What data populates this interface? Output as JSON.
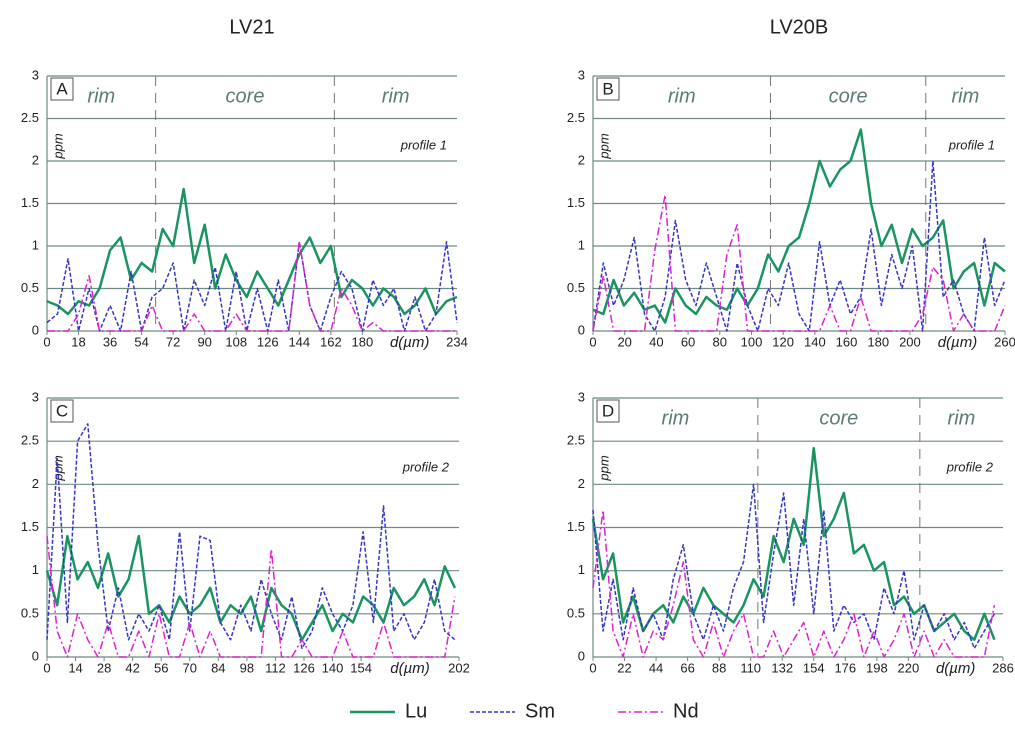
{
  "chart_data": [
    {
      "type": "line",
      "title": "LV21",
      "panel_label": "A",
      "annotation": "profile 1",
      "ylabel": "ppm",
      "xlabel": "d(µm)",
      "zones": [
        "rim",
        "core",
        "rim"
      ],
      "zone_boundaries": [
        62,
        164
      ],
      "xlim": [
        0,
        234
      ],
      "xticks": [
        0,
        18,
        36,
        54,
        72,
        90,
        108,
        126,
        144,
        162,
        180,
        234
      ],
      "ylim": [
        0,
        3
      ],
      "yticks": [
        0,
        0.5,
        1,
        1.5,
        2,
        2.5,
        3
      ],
      "grid": true,
      "x": [
        0,
        6,
        12,
        18,
        24,
        30,
        36,
        42,
        48,
        54,
        60,
        66,
        72,
        78,
        84,
        90,
        96,
        102,
        108,
        114,
        120,
        126,
        132,
        138,
        144,
        150,
        156,
        162,
        168,
        174,
        180,
        186,
        192,
        198,
        204,
        210,
        216,
        222,
        228,
        234
      ],
      "series": [
        {
          "name": "Lu",
          "color": "#1a9460",
          "line_style": "solid",
          "values": [
            0.35,
            0.3,
            0.2,
            0.35,
            0.3,
            0.5,
            0.95,
            1.1,
            0.6,
            0.8,
            0.7,
            1.2,
            1.0,
            1.67,
            0.8,
            1.25,
            0.5,
            0.9,
            0.6,
            0.4,
            0.7,
            0.5,
            0.3,
            0.6,
            0.9,
            1.1,
            0.8,
            1.0,
            0.4,
            0.6,
            0.5,
            0.3,
            0.5,
            0.4,
            0.2,
            0.3,
            0.5,
            0.2,
            0.35,
            0.4
          ]
        },
        {
          "name": "Sm",
          "color": "#3535c8",
          "line_style": "dashed",
          "values": [
            0.1,
            0.2,
            0.85,
            0,
            0.5,
            0,
            0.3,
            0,
            0.7,
            0,
            0.4,
            0.5,
            0.8,
            0,
            0.6,
            0.3,
            0.75,
            0,
            0.7,
            0,
            0.5,
            0,
            0.6,
            0,
            1.05,
            0.3,
            0,
            0.4,
            0.7,
            0.5,
            0,
            0.6,
            0.3,
            0.5,
            0,
            0.4,
            0,
            0.2,
            1.05,
            0.1
          ]
        },
        {
          "name": "Nd",
          "color": "#e020d0",
          "line_style": "dashdot",
          "values": [
            0,
            0,
            0,
            0.2,
            0.65,
            0,
            0,
            0,
            0,
            0,
            0.3,
            0,
            0,
            0,
            0.2,
            0,
            0,
            0,
            0.2,
            0,
            0,
            0,
            0,
            0,
            1.05,
            0.3,
            0,
            0,
            0.5,
            0.3,
            0,
            0.1,
            0,
            0,
            0,
            0,
            0,
            0,
            0,
            0
          ]
        }
      ]
    },
    {
      "type": "line",
      "title": "LV20B",
      "panel_label": "B",
      "annotation": "profile 1",
      "ylabel": "ppm",
      "xlabel": "d(µm)",
      "zones": [
        "rim",
        "core",
        "rim"
      ],
      "zone_boundaries": [
        112,
        210
      ],
      "xlim": [
        0,
        260
      ],
      "xticks": [
        0,
        20,
        40,
        60,
        80,
        100,
        120,
        140,
        160,
        180,
        200,
        260
      ],
      "ylim": [
        0,
        3
      ],
      "yticks": [
        0,
        0.5,
        1,
        1.5,
        2,
        2.5,
        3
      ],
      "grid": true,
      "x": [
        0,
        6.5,
        13,
        19.5,
        26,
        32.5,
        39,
        45.5,
        52,
        58.5,
        65,
        71.5,
        78,
        84.5,
        91,
        97.5,
        104,
        110.5,
        117,
        123.5,
        130,
        136.5,
        143,
        149.5,
        156,
        162.5,
        169,
        175.5,
        182,
        188.5,
        195,
        201.5,
        208,
        214.5,
        221,
        227.5,
        234,
        240.5,
        247,
        253.5,
        260
      ],
      "series": [
        {
          "name": "Lu",
          "color": "#1a9460",
          "line_style": "solid",
          "values": [
            0.25,
            0.2,
            0.6,
            0.3,
            0.45,
            0.25,
            0.3,
            0.1,
            0.5,
            0.3,
            0.2,
            0.4,
            0.3,
            0.25,
            0.5,
            0.3,
            0.5,
            0.9,
            0.7,
            1.0,
            1.1,
            1.5,
            2.0,
            1.7,
            1.9,
            2.0,
            2.37,
            1.5,
            1.0,
            1.25,
            0.8,
            1.2,
            1.0,
            1.1,
            1.3,
            0.5,
            0.7,
            0.8,
            0.3,
            0.8,
            0.7
          ]
        },
        {
          "name": "Sm",
          "color": "#3535c8",
          "line_style": "dashed",
          "values": [
            0,
            0.8,
            0.3,
            0.6,
            1.1,
            0.2,
            0,
            0.4,
            1.3,
            0.6,
            0.3,
            0.8,
            0.4,
            0,
            0.8,
            0.3,
            0,
            0.5,
            0.3,
            0.8,
            0.2,
            0,
            1.05,
            0.3,
            0.6,
            0.2,
            0.4,
            1.2,
            0.3,
            0.9,
            0.5,
            1.0,
            0,
            2.0,
            0.4,
            0.6,
            0.2,
            0,
            1.1,
            0.3,
            0.6
          ]
        },
        {
          "name": "Nd",
          "color": "#e020d0",
          "line_style": "dashdot",
          "values": [
            0,
            0.65,
            0,
            0,
            0,
            0,
            0.95,
            1.6,
            0,
            0,
            0,
            0,
            0,
            0.9,
            1.25,
            0,
            0,
            0,
            0,
            0,
            0,
            0,
            0,
            0.3,
            0,
            0,
            0.4,
            0,
            0,
            0,
            0,
            0,
            0.2,
            0.75,
            0.6,
            0,
            0.2,
            0,
            0,
            0,
            0.3
          ]
        }
      ]
    },
    {
      "type": "line",
      "panel_label": "C",
      "annotation": "profile 2",
      "ylabel": "ppm",
      "xlabel": "d(µm)",
      "xlim": [
        0,
        202
      ],
      "xticks": [
        0,
        14,
        28,
        42,
        56,
        70,
        84,
        98,
        112,
        126,
        140,
        154,
        202
      ],
      "ylim": [
        0,
        3
      ],
      "yticks": [
        0,
        0.5,
        1,
        1.5,
        2,
        2.5,
        3
      ],
      "grid": true,
      "x": [
        0,
        5,
        10,
        15,
        20,
        25,
        30,
        35,
        40,
        45,
        50,
        55,
        60,
        65,
        70,
        75,
        80,
        85,
        90,
        95,
        100,
        105,
        110,
        115,
        120,
        125,
        130,
        135,
        140,
        145,
        150,
        155,
        160,
        165,
        170,
        175,
        180,
        185,
        190,
        195,
        200
      ],
      "series": [
        {
          "name": "Lu",
          "color": "#1a9460",
          "line_style": "solid",
          "values": [
            1.0,
            0.6,
            1.4,
            0.9,
            1.1,
            0.8,
            1.2,
            0.7,
            0.9,
            1.4,
            0.5,
            0.6,
            0.4,
            0.7,
            0.5,
            0.6,
            0.8,
            0.4,
            0.6,
            0.5,
            0.7,
            0.3,
            0.8,
            0.6,
            0.5,
            0.2,
            0.4,
            0.6,
            0.3,
            0.5,
            0.4,
            0.7,
            0.6,
            0.4,
            0.8,
            0.6,
            0.7,
            0.9,
            0.6,
            1.05,
            0.8
          ]
        },
        {
          "name": "Sm",
          "color": "#3535c8",
          "line_style": "dashed",
          "values": [
            0.2,
            2.3,
            0.4,
            2.5,
            2.7,
            1.3,
            0.3,
            0.8,
            0.2,
            0.5,
            0.3,
            0.6,
            0.2,
            1.45,
            0.3,
            1.4,
            1.35,
            0.4,
            0.2,
            0.6,
            0.3,
            0.9,
            0.5,
            0.2,
            0.7,
            0.1,
            0.3,
            0.8,
            0.5,
            0.3,
            0.6,
            1.45,
            0.4,
            1.75,
            0.3,
            0.5,
            0.2,
            0.4,
            0.9,
            0.3,
            0.2
          ]
        },
        {
          "name": "Nd",
          "color": "#e020d0",
          "line_style": "dashdot",
          "values": [
            1.4,
            0.3,
            0,
            0.5,
            0.2,
            0,
            0.4,
            0,
            0,
            0.3,
            0,
            0.5,
            0,
            0,
            0.4,
            0,
            0.3,
            0,
            0,
            0,
            0,
            0,
            1.25,
            0,
            0,
            0.2,
            0,
            0,
            0,
            0.3,
            0,
            0,
            0,
            0.4,
            0,
            0,
            0,
            0,
            0,
            0,
            0.7
          ]
        }
      ]
    },
    {
      "type": "line",
      "panel_label": "D",
      "annotation": "profile 2",
      "ylabel": "ppm",
      "xlabel": "d(µm)",
      "zones": [
        "rim",
        "core",
        "rim"
      ],
      "zone_boundaries": [
        115,
        228
      ],
      "xlim": [
        0,
        286
      ],
      "xticks": [
        0,
        22,
        44,
        66,
        88,
        110,
        132,
        154,
        176,
        198,
        220,
        286
      ],
      "ylim": [
        0,
        3
      ],
      "yticks": [
        0,
        0.5,
        1,
        1.5,
        2,
        2.5,
        3
      ],
      "grid": true,
      "x": [
        0,
        7,
        14,
        21,
        28,
        35,
        42,
        49,
        56,
        63,
        70,
        77,
        84,
        91,
        98,
        105,
        112,
        119,
        126,
        133,
        140,
        147,
        154,
        161,
        168,
        175,
        182,
        189,
        196,
        203,
        210,
        217,
        224,
        231,
        238,
        245,
        252,
        259,
        266,
        273,
        280
      ],
      "series": [
        {
          "name": "Lu",
          "color": "#1a9460",
          "line_style": "solid",
          "values": [
            1.6,
            0.9,
            1.2,
            0.4,
            0.7,
            0.3,
            0.5,
            0.6,
            0.4,
            0.7,
            0.5,
            0.8,
            0.6,
            0.5,
            0.4,
            0.6,
            0.9,
            0.7,
            1.4,
            1.1,
            1.6,
            1.3,
            2.42,
            1.4,
            1.6,
            1.9,
            1.2,
            1.3,
            1.0,
            1.1,
            0.6,
            0.7,
            0.5,
            0.6,
            0.3,
            0.4,
            0.5,
            0.3,
            0.2,
            0.5,
            0.2
          ]
        },
        {
          "name": "Sm",
          "color": "#3535c8",
          "line_style": "dashed",
          "values": [
            1.7,
            0.3,
            0.9,
            0.2,
            0.8,
            0.3,
            0.5,
            0.2,
            0.9,
            1.3,
            0.5,
            0.2,
            0.6,
            0.3,
            0.8,
            1.1,
            2.0,
            0.4,
            1.2,
            1.9,
            0.6,
            1.6,
            0.5,
            1.7,
            0.3,
            0.6,
            0.4,
            0.5,
            0.2,
            0.8,
            0.5,
            1.0,
            0.2,
            0.6,
            0.3,
            0.5,
            0.2,
            0.4,
            0.1,
            0.3,
            0.5
          ]
        },
        {
          "name": "Nd",
          "color": "#e020d0",
          "line_style": "dashdot",
          "values": [
            0.8,
            1.7,
            0.3,
            0,
            0.5,
            0,
            0.3,
            0.2,
            0.6,
            1.1,
            0.2,
            0,
            0.4,
            0,
            0.3,
            0.5,
            0,
            0,
            0.3,
            0,
            0.2,
            0.4,
            0,
            0.3,
            0,
            0.2,
            0.5,
            0,
            0.3,
            0,
            0.2,
            0.5,
            0,
            0.3,
            0,
            0.2,
            0,
            0,
            0,
            0,
            0.6
          ]
        }
      ]
    }
  ]
}
